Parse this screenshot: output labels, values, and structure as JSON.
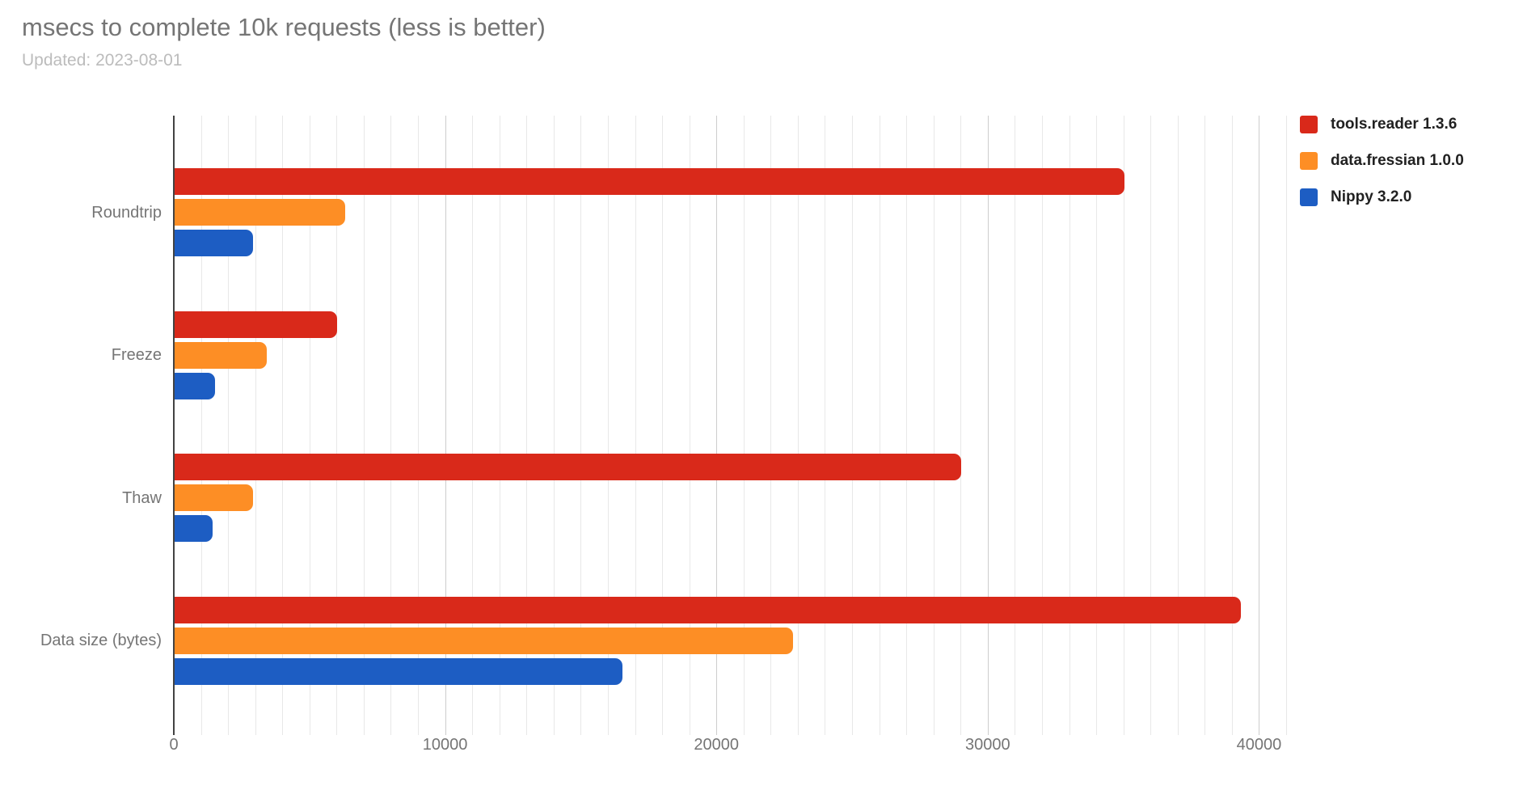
{
  "header": {
    "title": "msecs to complete 10k requests (less is better)",
    "subtitle": "Updated: 2023-08-01"
  },
  "chart_data": {
    "type": "bar",
    "orientation": "horizontal",
    "title": "msecs to complete 10k requests (less is better)",
    "subtitle": "Updated: 2023-08-01",
    "categories": [
      "Roundtrip",
      "Freeze",
      "Thaw",
      "Data size (bytes)"
    ],
    "series": [
      {
        "name": "tools.reader 1.3.6",
        "color": "#d9291a",
        "values": [
          35000,
          6000,
          29000,
          39300
        ]
      },
      {
        "name": "data.fressian 1.0.0",
        "color": "#fd8e25",
        "values": [
          6300,
          3400,
          2900,
          22800
        ]
      },
      {
        "name": "Nippy 3.2.0",
        "color": "#1d5dc3",
        "values": [
          2900,
          1500,
          1400,
          16500
        ]
      }
    ],
    "x_axis": {
      "ticks": [
        0,
        10000,
        20000,
        30000,
        40000
      ],
      "max": 41000,
      "minor_step": 1000,
      "major_step": 10000
    },
    "ylim": [
      0,
      41000
    ],
    "grid": true,
    "legend_position": "top-right"
  }
}
